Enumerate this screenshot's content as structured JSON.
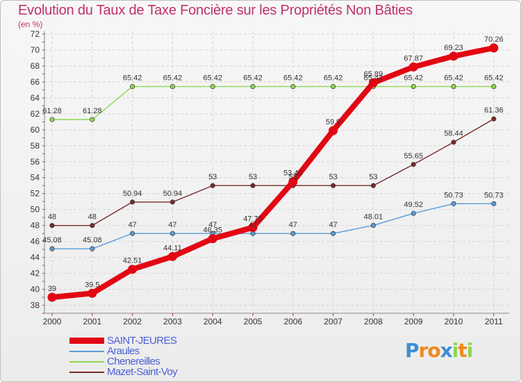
{
  "chart_data": {
    "type": "line",
    "title": "Evolution du Taux de Taxe Foncière sur les Propriétés Non Bâties",
    "subtitle": "(en %)",
    "x": [
      "2000",
      "2001",
      "2002",
      "2003",
      "2004",
      "2005",
      "2006",
      "2007",
      "2008",
      "2009",
      "2010",
      "2011"
    ],
    "ylim": [
      37,
      72
    ],
    "yticks": [
      38,
      40,
      42,
      44,
      46,
      48,
      50,
      52,
      54,
      56,
      58,
      60,
      62,
      64,
      66,
      68,
      70,
      72
    ],
    "grid": true,
    "series": [
      {
        "name": "SAINT-JEURES",
        "color": "#e30613",
        "emphasis": true,
        "values": [
          39,
          39.5,
          42.51,
          44.11,
          46.35,
          47.75,
          53.48,
          59.9,
          65.89,
          67.87,
          69.23,
          70.26
        ],
        "labels": [
          "39",
          "39.5",
          "42.51",
          "44.11",
          "46.35",
          "47.75",
          "53.48",
          "59.9",
          "65.89",
          "67.87",
          "69.23",
          "70.26"
        ]
      },
      {
        "name": "Araules",
        "color": "#5a9bd5",
        "values": [
          45.08,
          45.08,
          47,
          47,
          47,
          47,
          47,
          47,
          48.01,
          49.52,
          50.73,
          50.73
        ],
        "labels": [
          "45.08",
          "45.08",
          "47",
          "47",
          "47",
          "47",
          "47",
          "47",
          "48.01",
          "49.52",
          "50.73",
          "50.73"
        ]
      },
      {
        "name": "Chenereilles",
        "color": "#8ed64f",
        "values": [
          61.28,
          61.28,
          65.42,
          65.42,
          65.42,
          65.42,
          65.42,
          65.42,
          65.42,
          65.42,
          65.42,
          65.42
        ],
        "labels": [
          "61.28",
          "61.28",
          "65.42",
          "65.42",
          "65.42",
          "65.42",
          "65.42",
          "65.42",
          "65.42",
          "65.42",
          "65.42",
          "65.42"
        ]
      },
      {
        "name": "Mazet-Saint-Voy",
        "color": "#7a2a2a",
        "values": [
          48,
          48,
          50.94,
          50.94,
          53,
          53,
          53,
          53,
          53,
          55.65,
          58.44,
          61.36
        ],
        "labels": [
          "48",
          "48",
          "50.94",
          "50.94",
          "53",
          "53",
          "53",
          "53",
          "53",
          "55.65",
          "58.44",
          "61.36"
        ]
      }
    ]
  },
  "logo": {
    "text": "Proxiti",
    "letters": [
      "P",
      "r",
      "o",
      "x",
      "i",
      "t",
      "i"
    ],
    "colors": [
      "#3a8fd6",
      "#f08a1c",
      "#f08a1c",
      "#3a8fd6",
      "#8ed64f",
      "#f08a1c",
      "#8ed64f"
    ]
  }
}
